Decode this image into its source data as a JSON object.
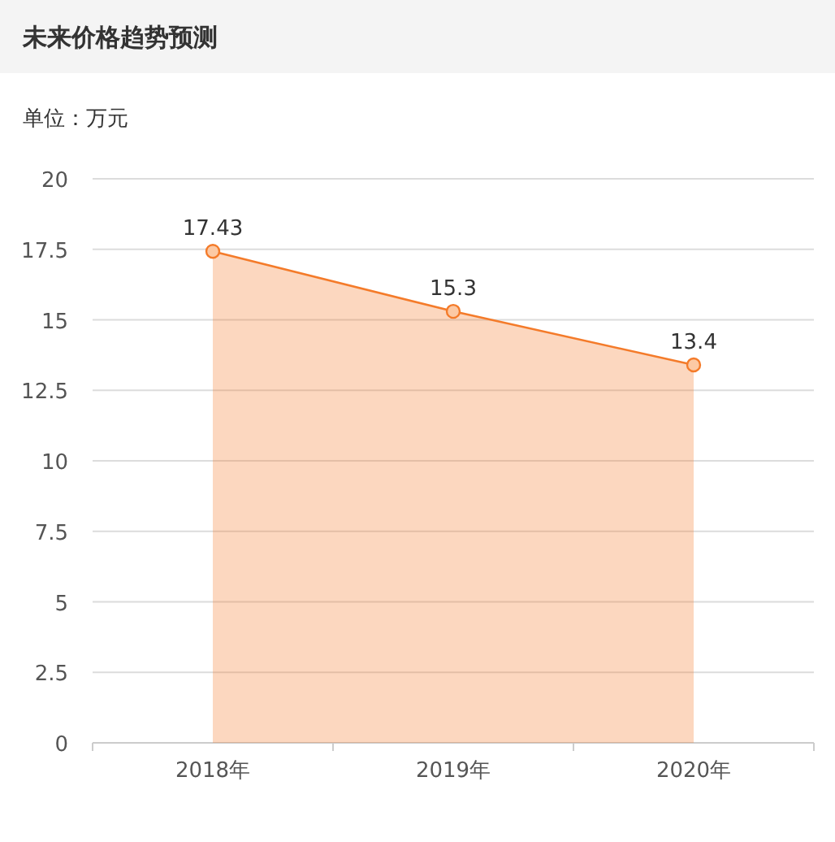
{
  "chart_data": {
    "type": "area",
    "title": "未来价格趋势预测",
    "ylabel": "单位：万元",
    "categories": [
      "2018年",
      "2019年",
      "2020年"
    ],
    "series": [
      {
        "color": "#f47b2a",
        "values": [
          17.43,
          15.3,
          13.4
        ]
      }
    ],
    "ylim": [
      0,
      20
    ],
    "yticks": [
      0,
      2.5,
      5,
      7.5,
      10,
      12.5,
      15,
      17.5,
      20
    ],
    "grid": "y",
    "marker": "circle",
    "data_labels": true
  }
}
